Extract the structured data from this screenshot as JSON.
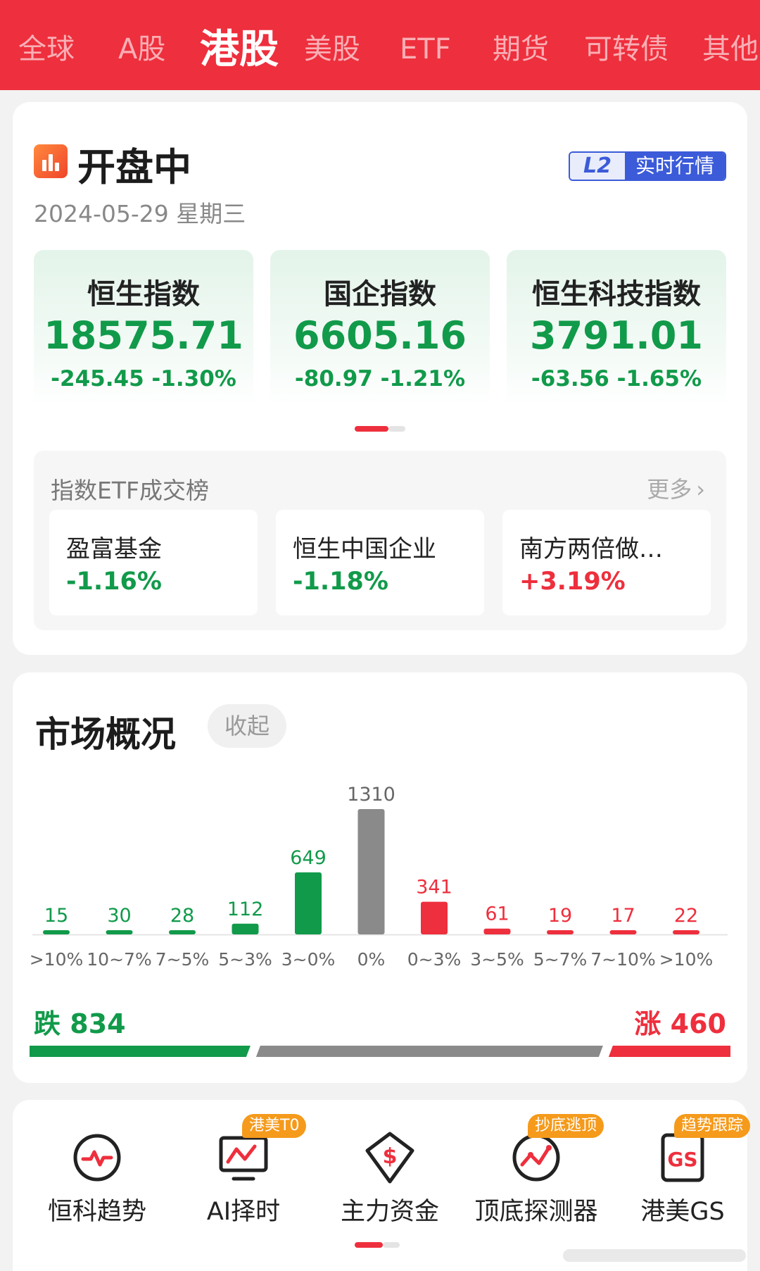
{
  "tabs": [
    {
      "label": "全球",
      "active": false
    },
    {
      "label": "A股",
      "active": false
    },
    {
      "label": "港股",
      "active": true
    },
    {
      "label": "美股",
      "active": false
    },
    {
      "label": "ETF",
      "active": false
    },
    {
      "label": "期货",
      "active": false
    },
    {
      "label": "可转债",
      "active": false
    },
    {
      "label": "其他",
      "active": false
    }
  ],
  "status": {
    "title": "开盘中",
    "date": "2024-05-29 星期三",
    "badge_l2": "L2",
    "badge_text": "实时行情"
  },
  "indices": [
    {
      "name": "恒生指数",
      "value": "18575.71",
      "change": "-245.45 -1.30%"
    },
    {
      "name": "国企指数",
      "value": "6605.16",
      "change": "-80.97 -1.21%"
    },
    {
      "name": "恒生科技指数",
      "value": "3791.01",
      "change": "-63.56 -1.65%"
    }
  ],
  "etf": {
    "title": "指数ETF成交榜",
    "more": "更多",
    "items": [
      {
        "name": "盈富基金",
        "pct": "-1.16%",
        "dir": "down"
      },
      {
        "name": "恒生中国企业",
        "pct": "-1.18%",
        "dir": "down"
      },
      {
        "name": "南方两倍做…",
        "pct": "+3.19%",
        "dir": "up"
      }
    ]
  },
  "market": {
    "title": "市场概况",
    "collapse_label": "收起",
    "fall_label": "跌",
    "fall_count": "834",
    "rise_label": "涨",
    "rise_count": "460",
    "chart_data": {
      "type": "bar",
      "categories": [
        ">10%",
        "10~7%",
        "7~5%",
        "5~3%",
        "3~0%",
        "0%",
        "0~3%",
        "3~5%",
        "5~7%",
        "7~10%",
        ">10%"
      ],
      "values": [
        15,
        30,
        28,
        112,
        649,
        1310,
        341,
        61,
        19,
        17,
        22
      ],
      "colors": [
        "#119a4a",
        "#119a4a",
        "#119a4a",
        "#119a4a",
        "#119a4a",
        "#8a8a8a",
        "#ee2f3d",
        "#ee2f3d",
        "#ee2f3d",
        "#ee2f3d",
        "#ee2f3d"
      ],
      "title": "",
      "xlabel": "",
      "ylabel": "",
      "ylim": [
        0,
        1310
      ],
      "grid": false
    },
    "distribution": {
      "down": 834,
      "flat": 1310,
      "up": 460
    }
  },
  "tools": [
    {
      "label": "恒科趋势",
      "icon": "heartbeat-icon",
      "tag": ""
    },
    {
      "label": "AI择时",
      "icon": "monitor-chart-icon",
      "tag": "港美T0"
    },
    {
      "label": "主力资金",
      "icon": "dollar-diamond-icon",
      "tag": ""
    },
    {
      "label": "顶底探测器",
      "icon": "wave-detector-icon",
      "tag": "抄底逃顶"
    },
    {
      "label": "港美GS",
      "icon": "gs-document-icon",
      "tag": "趋势跟踪"
    }
  ],
  "colors": {
    "brand_red": "#ee2f3d",
    "fall_green": "#119a4a",
    "flat_gray": "#8a8a8a",
    "tag_orange": "#f59a1b",
    "l2_blue": "#3b5bd9"
  }
}
